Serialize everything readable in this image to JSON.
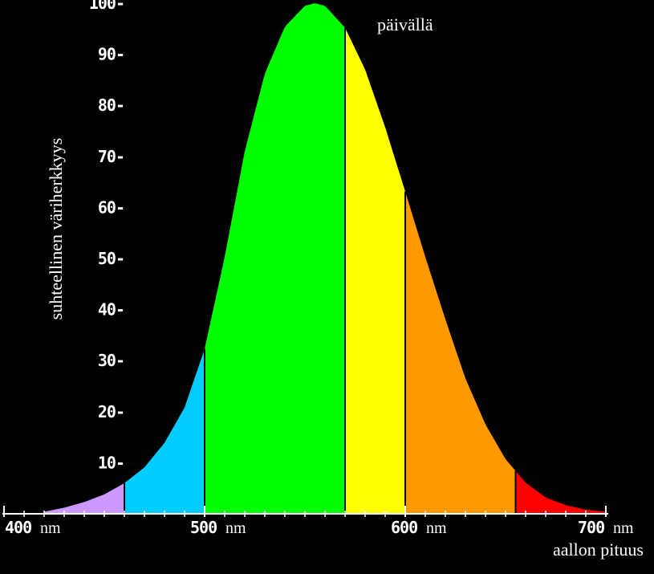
{
  "chart_data": {
    "type": "area",
    "title": "päivällä",
    "ylabel": "suhteellinen väriherkkyys",
    "xlabel": "aallon pituus",
    "xlim": [
      400,
      700
    ],
    "ylim": [
      0,
      100
    ],
    "x_tick_labels": [
      {
        "value": 400,
        "number": "400",
        "unit": "nm"
      },
      {
        "value": 500,
        "number": "500",
        "unit": "nm"
      },
      {
        "value": 600,
        "number": "600",
        "unit": "nm"
      },
      {
        "value": 700,
        "number": "700",
        "unit": "nm"
      }
    ],
    "y_ticks": [
      10,
      20,
      30,
      40,
      50,
      60,
      70,
      80,
      90,
      100
    ],
    "curve": {
      "x": [
        400,
        410,
        420,
        430,
        440,
        450,
        460,
        470,
        480,
        490,
        500,
        510,
        520,
        530,
        540,
        550,
        555,
        560,
        570,
        580,
        590,
        600,
        610,
        620,
        630,
        640,
        650,
        660,
        670,
        680,
        690,
        700
      ],
      "y": [
        0.0,
        0.1,
        0.4,
        1.2,
        2.3,
        3.8,
        6.0,
        9.1,
        13.9,
        20.8,
        32.3,
        50.3,
        71.0,
        86.2,
        95.4,
        99.5,
        100.0,
        99.5,
        95.2,
        87.0,
        75.7,
        63.1,
        50.3,
        38.1,
        26.5,
        17.5,
        10.7,
        6.1,
        3.2,
        1.7,
        0.8,
        0.4
      ]
    },
    "bands": [
      {
        "from": 420,
        "to": 460,
        "color": "#cc99ff"
      },
      {
        "from": 460,
        "to": 500,
        "color": "#00ccff"
      },
      {
        "from": 500,
        "to": 570,
        "color": "#00ff00"
      },
      {
        "from": 570,
        "to": 600,
        "color": "#ffff00"
      },
      {
        "from": 600,
        "to": 655,
        "color": "#ff9900"
      },
      {
        "from": 655,
        "to": 700,
        "color": "#ff0000"
      }
    ],
    "background": "#000000",
    "text_color": "#ffffff",
    "divider_color": "#000000",
    "grid": false
  }
}
